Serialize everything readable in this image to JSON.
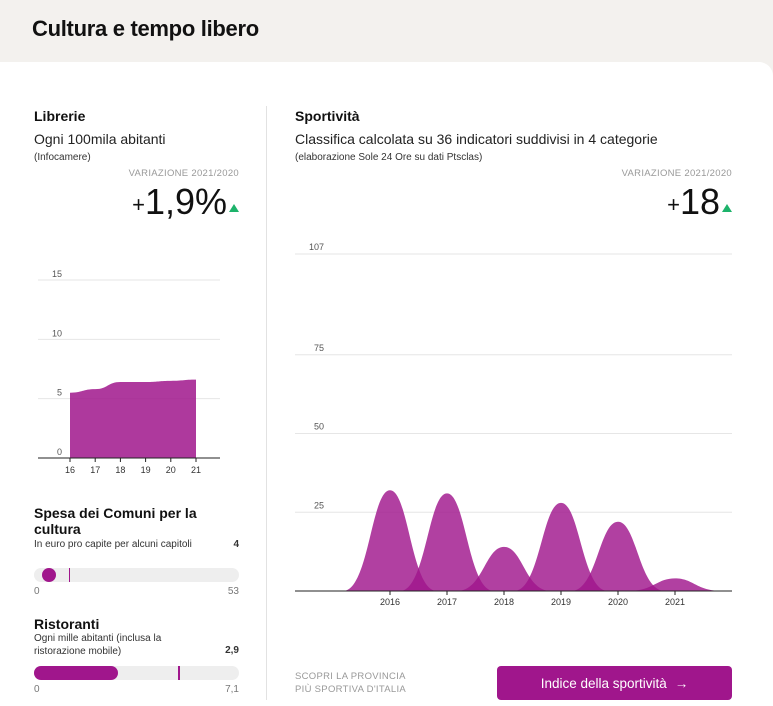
{
  "page": {
    "title": "Cultura e tempo libero"
  },
  "librerie": {
    "title": "Librerie",
    "subtitle": "Ogni 100mila abitanti",
    "source": "(Infocamere)",
    "variation_label": "VARIAZIONE 2021/2020",
    "variation_sign": "+",
    "variation_value": "1,9%",
    "trend": "up"
  },
  "spesa": {
    "title": "Spesa dei Comuni per la cultura",
    "subtitle": "In euro pro capite per alcuni capitoli",
    "value": "4",
    "min": "0",
    "max": "53",
    "value_num": 4,
    "max_num": 53,
    "marker_num": 9
  },
  "ristoranti": {
    "title": "Ristoranti",
    "subtitle": "Ogni mille abitanti (inclusa la ristorazione mobile)",
    "value": "2,9",
    "min": "0",
    "max": "7,1",
    "value_num": 2.9,
    "max_num": 7.1,
    "marker_num": 5.0
  },
  "sportivita": {
    "title": "Sportività",
    "subtitle": "Classifica calcolata su 36 indicatori suddivisi in 4 categorie",
    "source": "(elaborazione Sole 24 Ore su dati Ptsclas)",
    "variation_label": "VARIAZIONE 2021/2020",
    "variation_sign": "+",
    "variation_value": "18",
    "trend": "up"
  },
  "cta": {
    "note_line1": "SCOPRI LA PROVINCIA",
    "note_line2": "PIÙ SPORTIVA D'ITALIA",
    "button_label": "Indice della sportività",
    "arrow": "→"
  },
  "colors": {
    "accent": "#a0168c",
    "up": "#1db36b"
  },
  "chart_data": [
    {
      "type": "area",
      "categories": [
        "16",
        "17",
        "18",
        "19",
        "20",
        "21"
      ],
      "series": [
        {
          "values": [
            5.5,
            5.8,
            6.4,
            6.4,
            6.5,
            6.6
          ]
        }
      ],
      "yticks": [
        0,
        5,
        10,
        15
      ],
      "ylim": [
        0,
        15
      ],
      "grid": true
    },
    {
      "type": "area",
      "categories": [
        "2016",
        "2017",
        "2018",
        "2019",
        "2020",
        "2021"
      ],
      "series": [
        {
          "values": [
            32,
            31,
            14,
            28,
            22,
            4
          ]
        }
      ],
      "yticks": [
        25,
        50,
        75,
        107
      ],
      "ylim": [
        0,
        107
      ],
      "grid": true
    }
  ]
}
